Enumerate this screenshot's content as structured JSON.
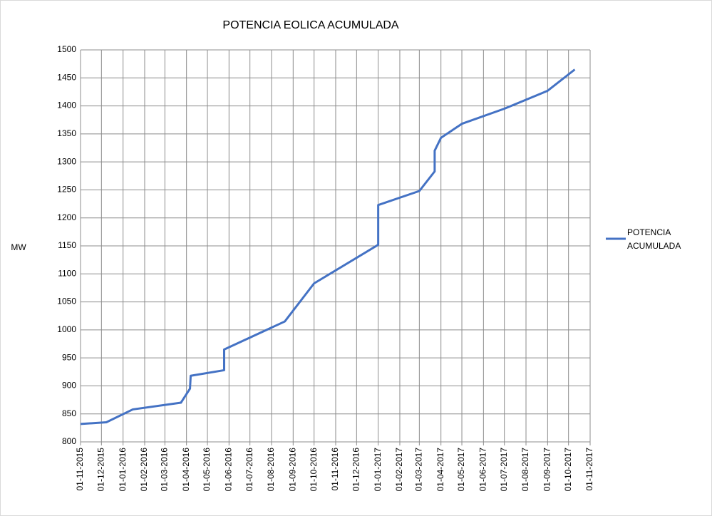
{
  "chart_data": {
    "type": "line",
    "title": "POTENCIA EOLICA ACUMULADA",
    "y_label": "MW",
    "x": [
      "01-11-2015",
      "08-12-2015",
      "15-01-2016",
      "24-03-2016",
      "06-04-2016",
      "07-04-2016",
      "25-05-2016",
      "25-05-2016",
      "20-08-2016",
      "01-10-2016",
      "01-01-2017",
      "01-01-2017",
      "01-03-2017",
      "23-03-2017",
      "23-03-2017",
      "01-04-2017",
      "01-05-2017",
      "01-07-2017",
      "01-09-2017",
      "10-10-2017"
    ],
    "series": [
      {
        "name": "POTENCIA ACUMULADA",
        "color": "#4472c4",
        "values": [
          832,
          835,
          858,
          870,
          895,
          918,
          928,
          965,
          1015,
          1083,
          1152,
          1223,
          1248,
          1283,
          1320,
          1343,
          1368,
          1395,
          1427,
          1465
        ]
      }
    ],
    "xlim": [
      "01-11-2015",
      "01-11-2017"
    ],
    "xticks": [
      "01-11-2015",
      "01-12-2015",
      "01-01-2016",
      "01-02-2016",
      "01-03-2016",
      "01-04-2016",
      "01-05-2016",
      "01-06-2016",
      "01-07-2016",
      "01-08-2016",
      "01-09-2016",
      "01-10-2016",
      "01-11-2016",
      "01-12-2016",
      "01-01-2017",
      "01-02-2017",
      "01-03-2017",
      "01-04-2017",
      "01-05-2017",
      "01-06-2017",
      "01-07-2017",
      "01-08-2017",
      "01-09-2017",
      "01-10-2017",
      "01-11-2017"
    ],
    "ylim": [
      800,
      1500
    ],
    "yticks": [
      800,
      850,
      900,
      950,
      1000,
      1050,
      1100,
      1150,
      1200,
      1250,
      1300,
      1350,
      1400,
      1450,
      1500
    ],
    "grid": true,
    "legend": "right"
  }
}
